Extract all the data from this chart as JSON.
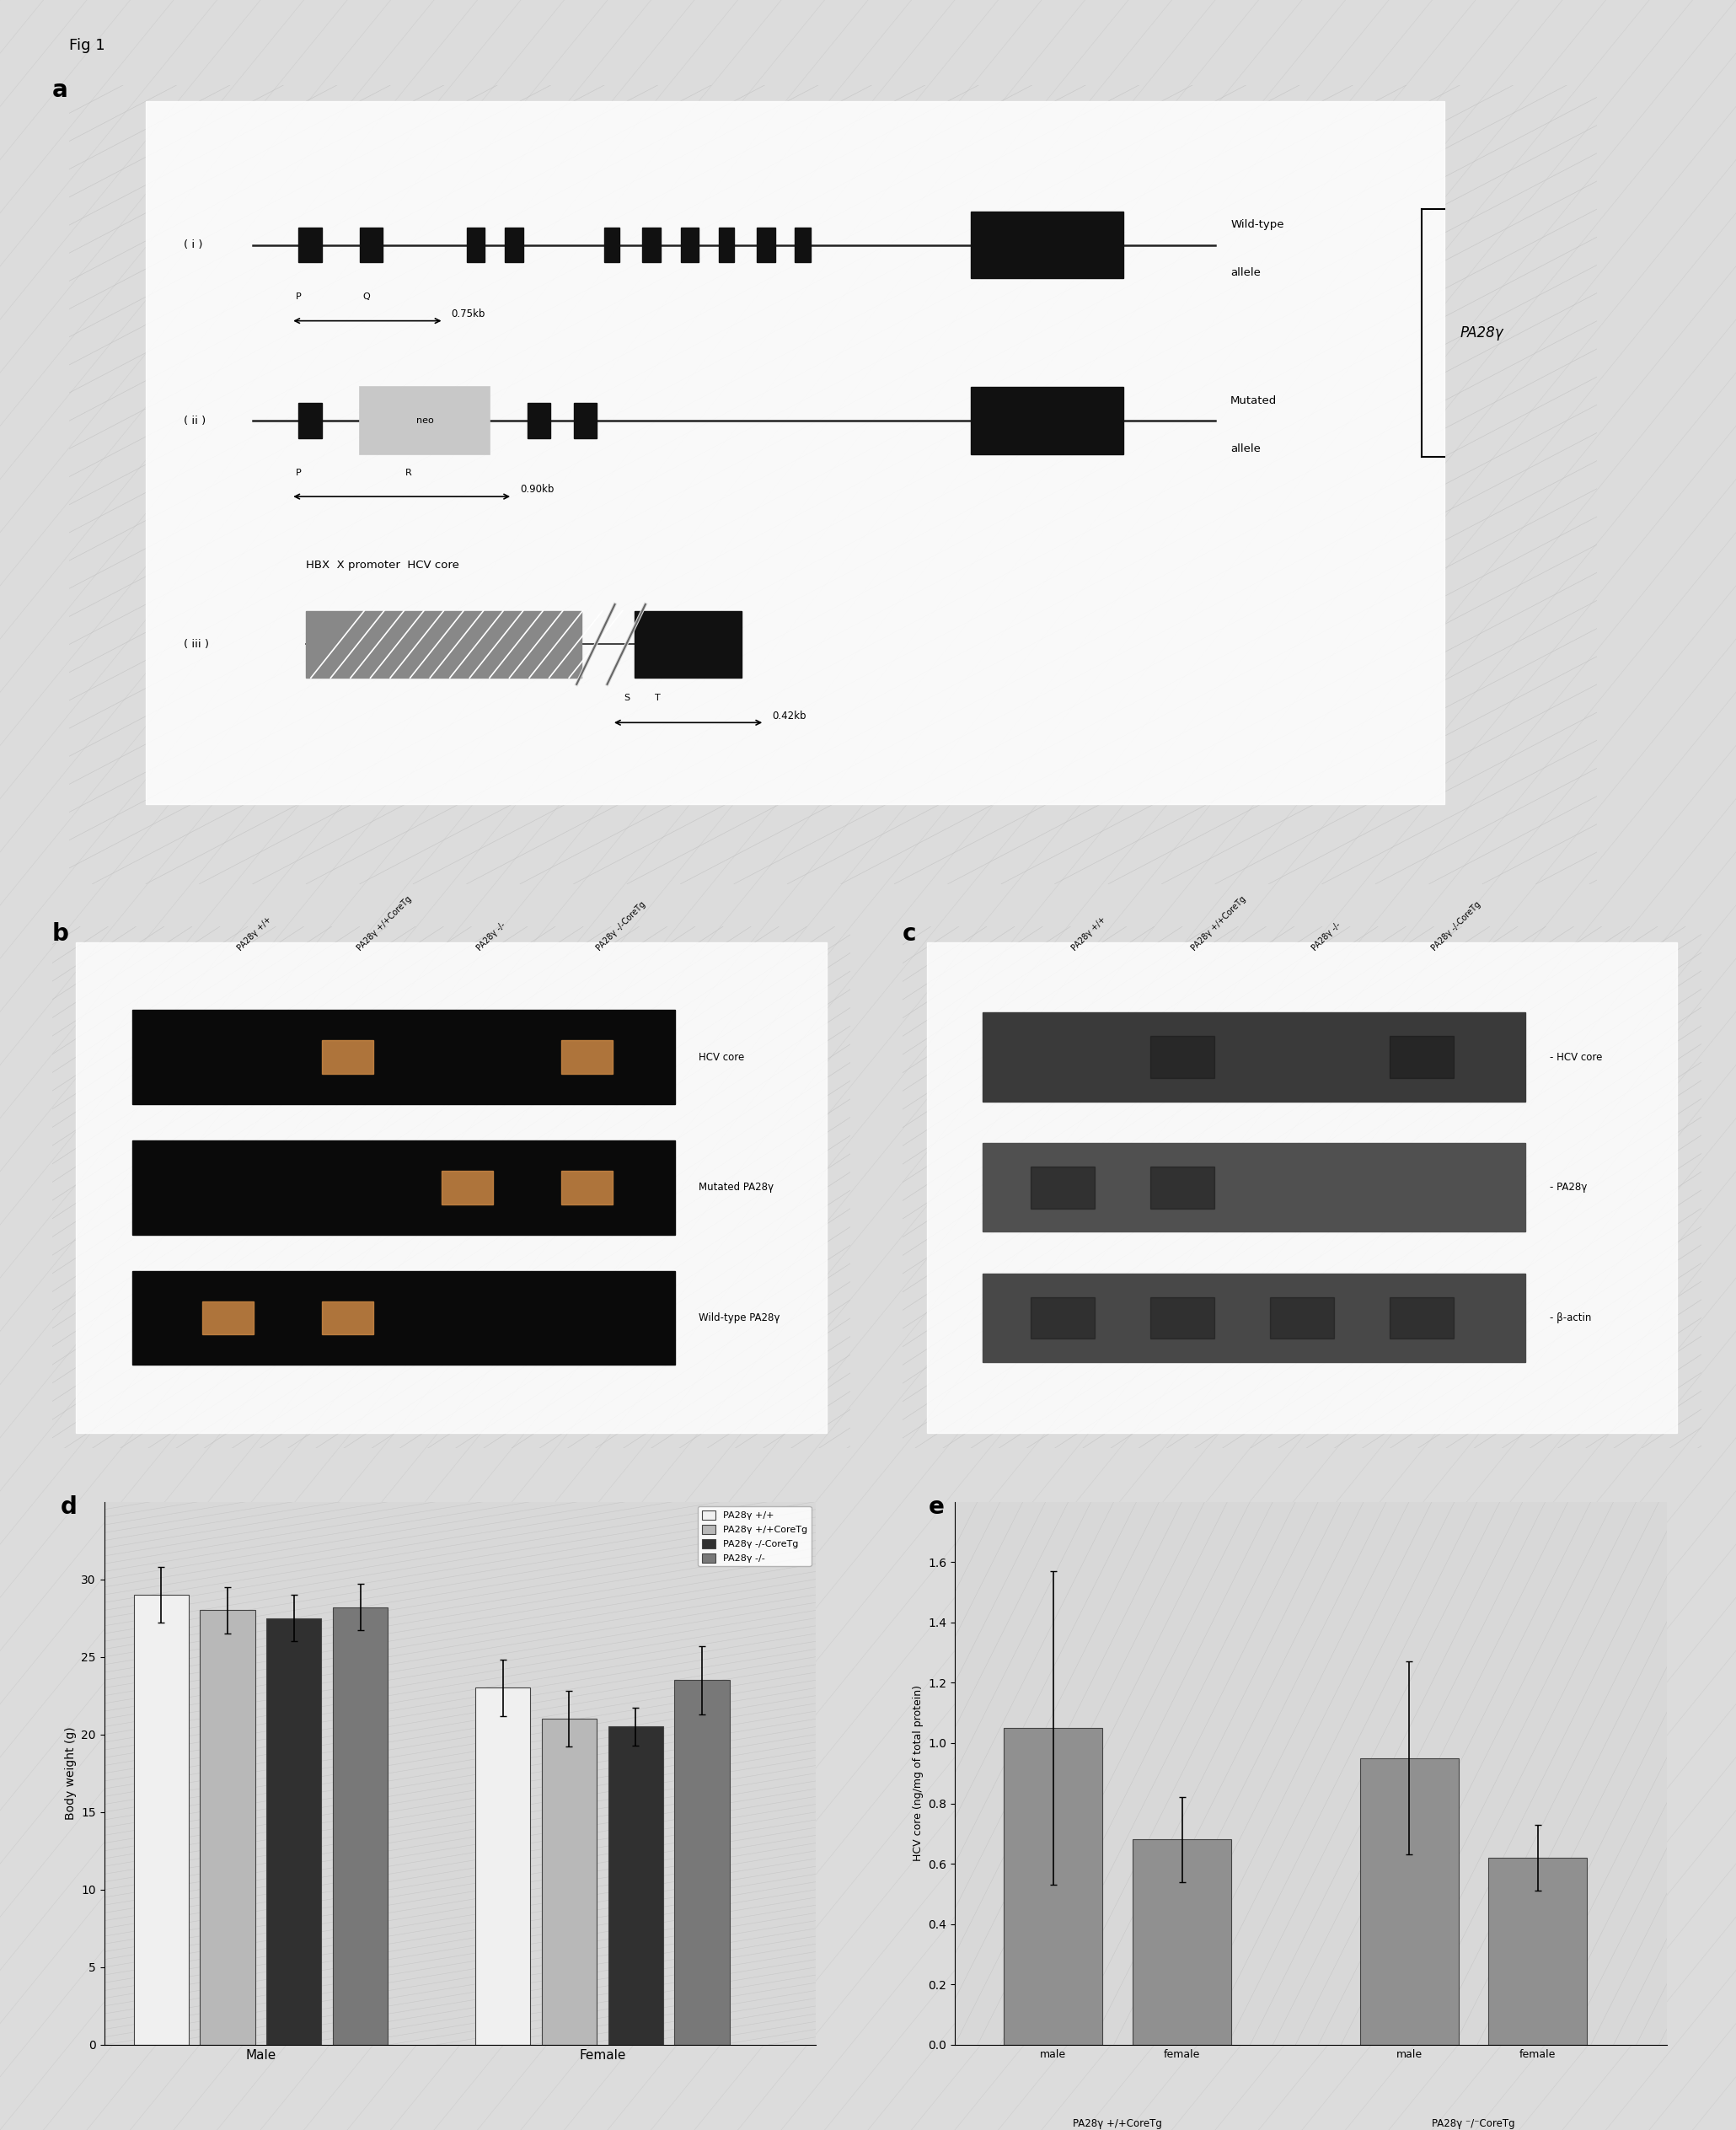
{
  "fig_label": "Fig 1",
  "panel_a_label": "a",
  "panel_b_label": "b",
  "panel_c_label": "c",
  "panel_d_label": "d",
  "panel_e_label": "e",
  "background_color": "#dcdcdc",
  "body_weight_male": [
    29.0,
    28.0,
    27.5,
    28.2
  ],
  "body_weight_female": [
    23.0,
    21.0,
    20.5,
    23.5
  ],
  "body_weight_male_err": [
    1.8,
    1.5,
    1.5,
    1.5
  ],
  "body_weight_female_err": [
    1.8,
    1.8,
    1.2,
    2.2
  ],
  "body_weight_yticks": [
    0,
    5,
    10,
    15,
    20,
    25,
    30
  ],
  "body_weight_ylabel": "Body weight (g)",
  "body_weight_legend": [
    "PA28γ +/+",
    "PA28γ +/+CoreTg",
    "PA28γ -/-CoreTg",
    "PA28γ -/-"
  ],
  "body_weight_colors": [
    "#f0f0f0",
    "#b8b8b8",
    "#303030",
    "#787878"
  ],
  "body_weight_edge": "#444444",
  "hcv_vals": [
    1.05,
    0.68,
    0.95,
    0.62
  ],
  "hcv_errs": [
    0.52,
    0.14,
    0.32,
    0.11
  ],
  "hcv_yticks": [
    0,
    0.2,
    0.4,
    0.6,
    0.8,
    1.0,
    1.2,
    1.4,
    1.6
  ],
  "hcv_ylabel": "HCV core (ng/mg of total protein)",
  "hcv_color": "#909090",
  "hcv_edge": "#444444",
  "neo_box_color": "#c8c8c8",
  "line_color": "#222222",
  "block_color": "#111111",
  "gray_block_color": "#888888",
  "diag_color": "#c8c8c8"
}
